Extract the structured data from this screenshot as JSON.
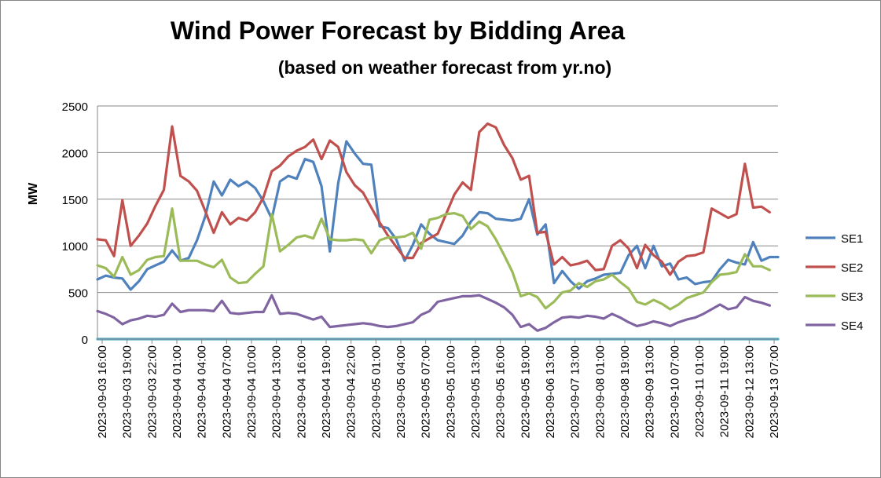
{
  "chart_data": {
    "type": "line",
    "title": "Wind Power Forecast by Bidding Area",
    "subtitle": "based on weather forecast from yr.no",
    "subtitle_display": "(based on weather forecast from yr.no)",
    "ylabel": "MW",
    "xlabel": "",
    "ylim": [
      0,
      2500
    ],
    "yticks": [
      0,
      500,
      1000,
      1500,
      2000,
      2500
    ],
    "grid": "horizontal",
    "legend_position": "right",
    "x_tick_labels": [
      "2023-09-03 16:00",
      "2023-09-03 19:00",
      "2023-09-03 22:00",
      "2023-09-04 01:00",
      "2023-09-04 04:00",
      "2023-09-04 07:00",
      "2023-09-04 10:00",
      "2023-09-04 13:00",
      "2023-09-04 16:00",
      "2023-09-04 19:00",
      "2023-09-04 22:00",
      "2023-09-05 01:00",
      "2023-09-05 04:00",
      "2023-09-05 07:00",
      "2023-09-05 10:00",
      "2023-09-05 13:00",
      "2023-09-05 16:00",
      "2023-09-05 19:00",
      "2023-09-06 13:00",
      "2023-09-07 13:00",
      "2023-09-08 01:00",
      "2023-09-08 19:00",
      "2023-09-09 13:00",
      "2023-09-10 07:00",
      "2023-09-11 01:00",
      "2023-09-11 19:00",
      "2023-09-12 13:00",
      "2023-09-13 07:00"
    ],
    "series": [
      {
        "name": "SE1",
        "color": "#4F81BD",
        "values": [
          640,
          680,
          660,
          650,
          530,
          620,
          750,
          790,
          830,
          950,
          840,
          870,
          1060,
          1320,
          1690,
          1540,
          1710,
          1640,
          1690,
          1620,
          1480,
          1290,
          1690,
          1750,
          1720,
          1930,
          1900,
          1640,
          940,
          1670,
          2120,
          1990,
          1880,
          1870,
          1210,
          1190,
          1070,
          840,
          1010,
          1230,
          1130,
          1060,
          1040,
          1020,
          1110,
          1260,
          1360,
          1350,
          1290,
          1280,
          1270,
          1290,
          1500,
          1120,
          1230,
          600,
          730,
          620,
          540,
          620,
          650,
          690,
          700,
          710,
          900,
          1000,
          760,
          1000,
          780,
          810,
          640,
          660,
          590,
          610,
          620,
          750,
          850,
          820,
          800,
          1040,
          840,
          880,
          880
        ]
      },
      {
        "name": "SE2",
        "color": "#C0504D",
        "values": [
          1070,
          1060,
          890,
          1490,
          1000,
          1110,
          1240,
          1430,
          1600,
          2280,
          1750,
          1690,
          1590,
          1370,
          1140,
          1360,
          1230,
          1300,
          1270,
          1360,
          1520,
          1800,
          1860,
          1960,
          2020,
          2060,
          2140,
          1930,
          2130,
          2060,
          1790,
          1650,
          1570,
          1410,
          1250,
          1110,
          990,
          870,
          870,
          1030,
          1080,
          1130,
          1340,
          1550,
          1680,
          1600,
          2220,
          2310,
          2270,
          2080,
          1940,
          1710,
          1750,
          1140,
          1150,
          800,
          880,
          790,
          810,
          840,
          740,
          750,
          1000,
          1060,
          970,
          760,
          1010,
          900,
          830,
          690,
          830,
          890,
          900,
          930,
          1400,
          1350,
          1300,
          1340,
          1880,
          1410,
          1420,
          1360
        ]
      },
      {
        "name": "SE3",
        "color": "#9BBB59",
        "values": [
          790,
          760,
          670,
          880,
          690,
          740,
          850,
          880,
          890,
          1400,
          840,
          840,
          840,
          800,
          770,
          850,
          660,
          600,
          610,
          700,
          780,
          1340,
          940,
          1010,
          1090,
          1110,
          1080,
          1290,
          1070,
          1060,
          1060,
          1070,
          1060,
          920,
          1060,
          1090,
          1090,
          1100,
          1140,
          970,
          1280,
          1300,
          1340,
          1350,
          1320,
          1180,
          1260,
          1210,
          1070,
          900,
          720,
          460,
          490,
          450,
          330,
          400,
          500,
          520,
          600,
          560,
          620,
          640,
          690,
          610,
          540,
          400,
          370,
          420,
          380,
          320,
          370,
          440,
          470,
          500,
          610,
          690,
          700,
          720,
          910,
          780,
          780,
          740
        ]
      },
      {
        "name": "SE4",
        "color": "#8064A2",
        "values": [
          300,
          270,
          230,
          160,
          200,
          220,
          250,
          240,
          260,
          380,
          290,
          310,
          310,
          310,
          300,
          410,
          280,
          270,
          280,
          290,
          290,
          470,
          270,
          280,
          270,
          240,
          210,
          240,
          130,
          140,
          150,
          160,
          170,
          160,
          140,
          130,
          140,
          160,
          180,
          260,
          300,
          400,
          420,
          440,
          460,
          460,
          470,
          430,
          390,
          340,
          260,
          130,
          160,
          90,
          120,
          180,
          230,
          240,
          230,
          250,
          240,
          220,
          270,
          230,
          180,
          140,
          160,
          190,
          170,
          140,
          180,
          210,
          230,
          270,
          320,
          370,
          320,
          340,
          450,
          410,
          390,
          360
        ]
      },
      {
        "name": "",
        "color": "#4BACC6",
        "values": [
          0,
          0
        ]
      }
    ]
  }
}
